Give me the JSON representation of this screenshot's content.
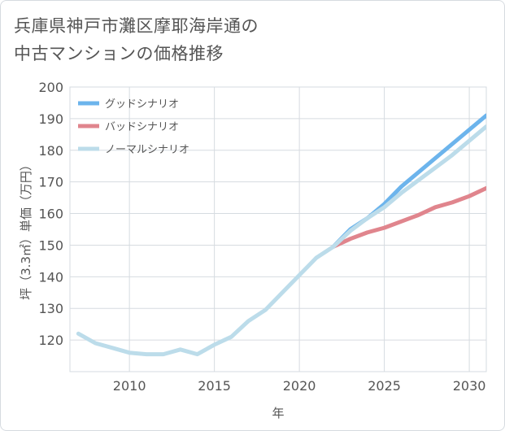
{
  "title_line1": "兵庫県神戸市灘区摩耶海岸通の",
  "title_line2": "中古マンションの価格推移",
  "chart_data": {
    "type": "line",
    "xlabel": "年",
    "ylabel": "坪（3.3㎡）単価（万円）",
    "xlim": [
      2006.5,
      2031
    ],
    "ylim": [
      110,
      200
    ],
    "xticks": [
      2010,
      2015,
      2020,
      2025,
      2030
    ],
    "yticks": [
      120,
      130,
      140,
      150,
      160,
      170,
      180,
      190,
      200
    ],
    "grid": true,
    "legend_position": "top-left",
    "series": [
      {
        "name": "グッドシナリオ",
        "color": "#6cb4ec",
        "x": [
          2022,
          2023,
          2024,
          2025,
          2026,
          2027,
          2028,
          2029,
          2030,
          2031
        ],
        "y": [
          149.5,
          155,
          158.5,
          163,
          168.5,
          173,
          177.5,
          182,
          186.5,
          191
        ]
      },
      {
        "name": "バッドシナリオ",
        "color": "#e0858d",
        "x": [
          2022,
          2023,
          2024,
          2025,
          2026,
          2027,
          2028,
          2029,
          2030,
          2031
        ],
        "y": [
          149.5,
          152,
          154,
          155.5,
          157.5,
          159.5,
          162,
          163.5,
          165.5,
          168
        ]
      },
      {
        "name": "ノーマルシナリオ",
        "color": "#bcdcea",
        "x": [
          2007,
          2008,
          2009,
          2010,
          2011,
          2012,
          2013,
          2014,
          2015,
          2016,
          2017,
          2018,
          2019,
          2020,
          2021,
          2022,
          2023,
          2024,
          2025,
          2026,
          2027,
          2028,
          2029,
          2030,
          2031
        ],
        "y": [
          122,
          119,
          117.5,
          116,
          115.5,
          115.5,
          117,
          115.5,
          118.5,
          121,
          126,
          129.5,
          135,
          140.5,
          146,
          149.5,
          154.5,
          158.5,
          162,
          166.5,
          170.5,
          174.5,
          178.5,
          183,
          187.5
        ]
      }
    ]
  }
}
